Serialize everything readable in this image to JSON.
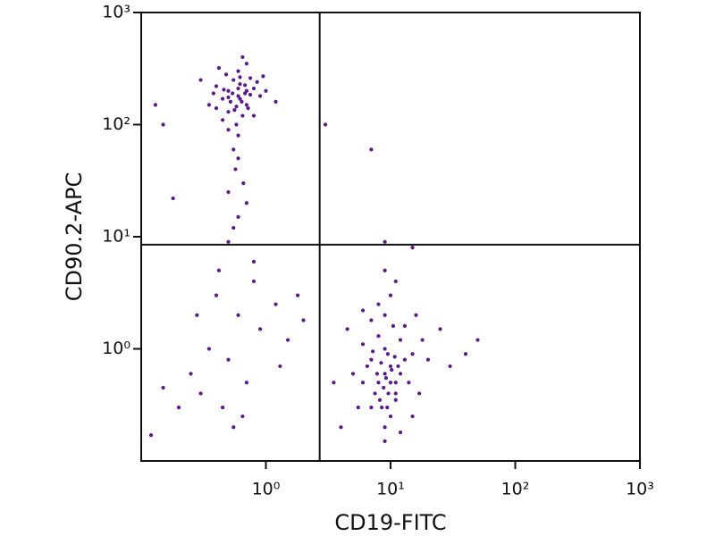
{
  "chart_data": {
    "type": "scatter",
    "x_label": "CD19-FITC",
    "y_label": "CD90.2-APC",
    "xscale": "log",
    "yscale": "log",
    "xlim": [
      0.1,
      1000
    ],
    "ylim": [
      0.1,
      1000
    ],
    "xticks": [
      {
        "value": 1,
        "label": "10⁰"
      },
      {
        "value": 10,
        "label": "10¹"
      },
      {
        "value": 100,
        "label": "10²"
      },
      {
        "value": 1000,
        "label": "10³"
      }
    ],
    "yticks": [
      {
        "value": 1,
        "label": "10⁰"
      },
      {
        "value": 10,
        "label": "10¹"
      },
      {
        "value": 100,
        "label": "10²"
      },
      {
        "value": 1000,
        "label": "10³"
      }
    ],
    "quadrant": {
      "x": 2.7,
      "y": 8.5
    },
    "color": "#5b1a8c",
    "x": [
      0.6,
      0.5,
      0.7,
      0.55,
      0.65,
      0.45,
      0.8,
      0.6,
      0.5,
      0.75,
      0.4,
      0.9,
      0.58,
      0.68,
      0.52,
      0.62,
      0.48,
      0.72,
      0.85,
      0.38,
      0.6,
      0.55,
      0.7,
      0.65,
      0.45,
      1.0,
      0.35,
      0.5,
      0.8,
      0.6,
      0.57,
      0.66,
      0.5,
      0.42,
      0.95,
      1.2,
      0.3,
      0.62,
      0.54,
      0.7,
      0.6,
      0.64,
      0.5,
      0.58,
      0.75,
      0.46,
      0.68,
      0.56,
      0.62,
      0.4,
      0.6,
      0.55,
      0.7,
      0.5,
      0.8,
      0.4,
      0.6,
      0.9,
      0.35,
      0.5,
      0.7,
      0.3,
      0.45,
      1.2,
      1.5,
      0.25,
      1.8,
      0.65,
      0.2,
      0.55,
      0.12,
      0.15,
      0.8,
      1.3,
      2.0,
      0.42,
      0.28,
      0.18,
      0.13,
      0.15,
      9,
      8,
      10,
      7,
      11,
      9,
      12,
      6,
      8.5,
      10,
      9.5,
      7.5,
      13,
      8,
      10.5,
      6.5,
      11,
      9,
      7,
      12,
      15,
      5,
      9,
      8,
      10,
      14,
      6,
      11,
      8.8,
      9.2,
      10.2,
      7.8,
      9.6,
      8.4,
      10.8,
      7.2,
      11.5,
      9.4,
      8.2,
      10,
      9,
      12,
      5.5,
      4.5,
      18,
      20,
      16,
      7,
      6,
      13,
      3.5,
      4,
      11,
      9,
      25,
      30,
      50,
      40,
      17,
      15,
      3,
      7,
      9,
      15
    ],
    "values": [
      180,
      200,
      150,
      250,
      120,
      170,
      210,
      300,
      130,
      260,
      220,
      180,
      100,
      190,
      160,
      230,
      280,
      140,
      240,
      190,
      80,
      60,
      350,
      400,
      110,
      200,
      150,
      90,
      120,
      50,
      40,
      30,
      25,
      320,
      270,
      160,
      250,
      170,
      190,
      200,
      210,
      160,
      175,
      145,
      185,
      205,
      225,
      135,
      265,
      140,
      15,
      12,
      20,
      9,
      6,
      3,
      2,
      1.5,
      1,
      0.8,
      0.5,
      0.4,
      0.3,
      2.5,
      1.2,
      0.6,
      3,
      0.25,
      0.3,
      0.2,
      0.17,
      0.45,
      4,
      0.7,
      1.8,
      5,
      2,
      22,
      150,
      100,
      0.6,
      0.5,
      0.7,
      0.8,
      0.4,
      1.0,
      0.6,
      0.5,
      0.3,
      0.25,
      0.9,
      0.4,
      0.8,
      1.3,
      1.6,
      0.7,
      0.35,
      0.2,
      0.3,
      1.2,
      0.9,
      0.6,
      2,
      2.5,
      3,
      0.5,
      1.1,
      0.5,
      0.45,
      0.55,
      0.65,
      0.6,
      0.4,
      0.75,
      0.85,
      0.95,
      0.7,
      0.3,
      0.35,
      0.5,
      0.15,
      0.18,
      0.3,
      1.5,
      1.2,
      0.8,
      2,
      1.8,
      2.2,
      1.6,
      0.5,
      0.2,
      4,
      5,
      1.5,
      0.7,
      1.2,
      0.9,
      0.4,
      0.25,
      100,
      60,
      9,
      8
    ]
  }
}
